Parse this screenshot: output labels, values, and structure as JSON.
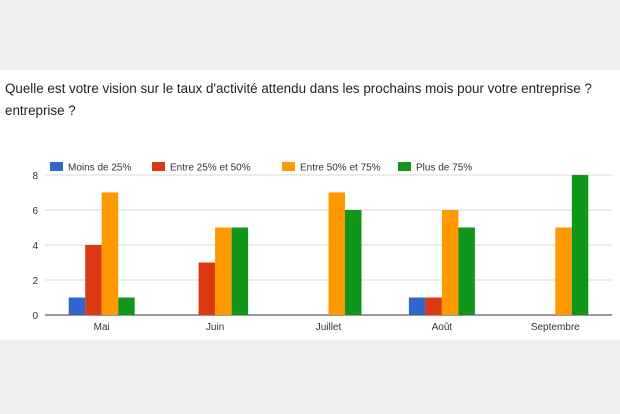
{
  "question": {
    "line1": "Quelle est votre vision sur le taux d'activité attendu dans les prochains mois pour votre entreprise ?",
    "line2": "entreprise ?"
  },
  "chart_data": {
    "type": "bar",
    "title": "Quelle est votre vision sur le taux d'activité attendu dans les prochains mois pour votre entreprise ?",
    "categories": [
      "Mai",
      "Juin",
      "Juillet",
      "Août",
      "Septembre"
    ],
    "series": [
      {
        "name": "Moins de 25%",
        "color": "#3366cc",
        "values": [
          1,
          0,
          0,
          1,
          0
        ]
      },
      {
        "name": "Entre 25% et 50%",
        "color": "#dc3912",
        "values": [
          4,
          3,
          0,
          1,
          0
        ]
      },
      {
        "name": "Entre 50% et 75%",
        "color": "#ff9900",
        "values": [
          7,
          5,
          7,
          6,
          5
        ]
      },
      {
        "name": "Plus de 75%",
        "color": "#109618",
        "values": [
          1,
          5,
          6,
          5,
          8
        ]
      }
    ],
    "yticks": [
      0,
      2,
      4,
      6,
      8
    ],
    "ylim": [
      0,
      8
    ],
    "xlabel": "",
    "ylabel": "",
    "grid": true,
    "legend_position": "top-left"
  }
}
